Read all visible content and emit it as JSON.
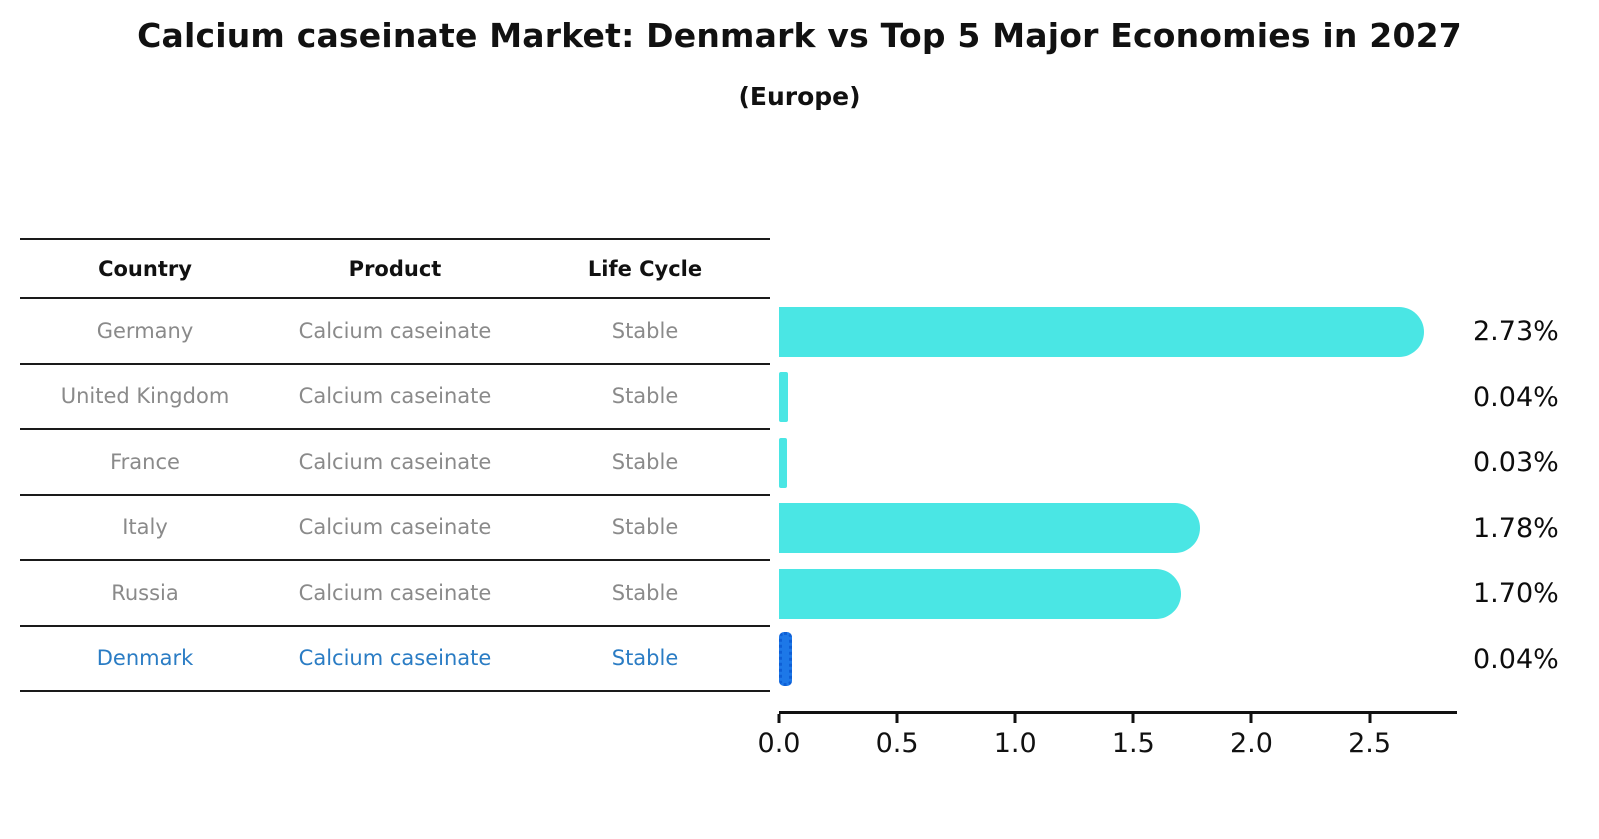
{
  "title": "Calcium caseinate Market: Denmark vs Top 5 Major Economies in 2027",
  "subtitle": "(Europe)",
  "table": {
    "columns": [
      "Country",
      "Product",
      "Life Cycle"
    ],
    "rows": [
      {
        "country": "Germany",
        "product": "Calcium caseinate",
        "life_cycle": "Stable",
        "highlight": false
      },
      {
        "country": "United Kingdom",
        "product": "Calcium caseinate",
        "life_cycle": "Stable",
        "highlight": false
      },
      {
        "country": "France",
        "product": "Calcium caseinate",
        "life_cycle": "Stable",
        "highlight": false
      },
      {
        "country": "Italy",
        "product": "Calcium caseinate",
        "life_cycle": "Stable",
        "highlight": false
      },
      {
        "country": "Russia",
        "product": "Calcium caseinate",
        "life_cycle": "Stable",
        "highlight": false
      },
      {
        "country": "Denmark",
        "product": "Calcium caseinate",
        "life_cycle": "Stable",
        "highlight": true
      }
    ]
  },
  "chart_data": {
    "type": "bar",
    "orientation": "horizontal",
    "title": "Calcium caseinate Market: Denmark vs Top 5 Major Economies in 2027 (Europe)",
    "categories": [
      "Germany",
      "United Kingdom",
      "France",
      "Italy",
      "Russia",
      "Denmark"
    ],
    "values": [
      2.73,
      0.04,
      0.03,
      1.78,
      1.7,
      0.04
    ],
    "value_labels": [
      "2.73%",
      "0.04%",
      "0.03%",
      "1.78%",
      "1.70%",
      "0.04%"
    ],
    "unit": "percent",
    "xlabel": "",
    "ylabel": "",
    "xlim": [
      0,
      2.87
    ],
    "x_ticks": [
      "0.0",
      "0.5",
      "1.0",
      "1.5",
      "2.0",
      "2.5"
    ],
    "x_tick_values": [
      0,
      0.5,
      1.0,
      1.5,
      2.0,
      2.5
    ],
    "grid": false,
    "legend": false,
    "highlight_index": 5,
    "colors": {
      "bar": "#4ae6e4",
      "highlight_bar": "#1d78e8",
      "highlight_text": "#2a7cc4",
      "row_text": "#8a8a8a",
      "header_text": "#111111",
      "line": "#1a1a1a"
    }
  }
}
